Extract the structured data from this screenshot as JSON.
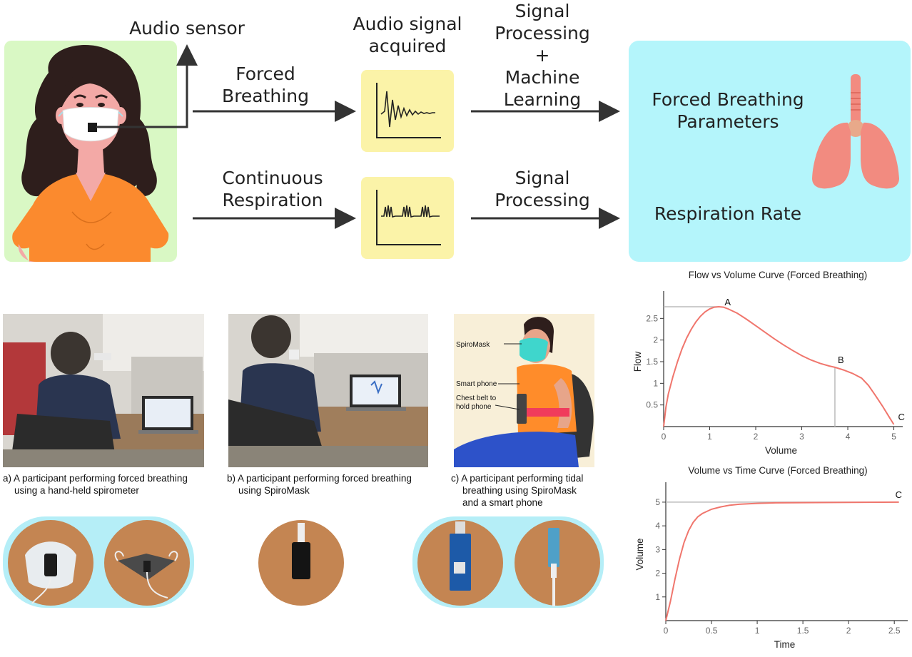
{
  "flow": {
    "audio_sensor": "Audio sensor",
    "audio_signal_acquired": [
      "Audio signal",
      "acquired"
    ],
    "forced_breathing": [
      "Forced",
      "Breathing"
    ],
    "continuous_respiration": [
      "Continuous",
      "Respiration"
    ],
    "sp_ml": [
      "Signal",
      "Processing",
      "+",
      "Machine",
      "Learning"
    ],
    "sp": [
      "Signal",
      "Processing"
    ],
    "forced_breathing_parameters": [
      "Forced Breathing",
      "Parameters"
    ],
    "respiration_rate": "Respiration Rate"
  },
  "photos": {
    "caption_a": [
      "a) A participant performing forced breathing",
      "using a hand-held spirometer"
    ],
    "caption_b": [
      "b) A participant performing forced breathing",
      "using SpiroMask"
    ],
    "caption_c": [
      "c) A participant performing tidal",
      "breathing using SpiroMask",
      "and a smart phone"
    ],
    "illus_labels": {
      "spiromask": "SpiroMask",
      "smart_phone": "Smart phone",
      "chest_belt": [
        "Chest belt to",
        "hold phone"
      ]
    }
  },
  "colors": {
    "person_panel": "#d9f8c4",
    "signal_box": "#fbf3a8",
    "result_panel": "#b4f5fb",
    "curve": "#f0766d",
    "lungs": "#f28b80"
  },
  "chart_data": [
    {
      "type": "line",
      "title": "Flow vs Volume Curve (Forced Breathing)",
      "xlabel": "Volume",
      "ylabel": "Flow",
      "xlim": [
        0,
        5.1
      ],
      "ylim": [
        0,
        3.0
      ],
      "xticks": [
        0,
        1,
        2,
        3,
        4,
        5
      ],
      "yticks": [
        0.5,
        1,
        1.5,
        2,
        2.5
      ],
      "annotations": [
        {
          "label": "A",
          "x": 1.2,
          "y": 2.77
        },
        {
          "label": "B",
          "x": 3.72,
          "y": 1.37
        },
        {
          "label": "C",
          "x": 5.0,
          "y": 0.05
        }
      ],
      "series": [
        {
          "x": [
            0,
            0.05,
            0.1,
            0.2,
            0.3,
            0.4,
            0.5,
            0.6,
            0.7,
            0.8,
            0.9,
            1.0,
            1.1,
            1.2,
            1.3,
            1.4,
            1.6,
            1.8,
            2.0,
            2.2,
            2.4,
            2.6,
            2.8,
            3.0,
            3.2,
            3.4,
            3.6,
            3.72,
            3.9,
            4.1,
            4.3,
            4.45,
            4.6,
            4.75,
            4.9,
            5.0
          ],
          "y": [
            0,
            0.45,
            0.75,
            1.15,
            1.5,
            1.8,
            2.05,
            2.25,
            2.42,
            2.55,
            2.65,
            2.72,
            2.76,
            2.77,
            2.76,
            2.72,
            2.62,
            2.48,
            2.33,
            2.18,
            2.03,
            1.89,
            1.76,
            1.64,
            1.54,
            1.46,
            1.4,
            1.37,
            1.31,
            1.23,
            1.12,
            0.95,
            0.72,
            0.48,
            0.22,
            0.05
          ]
        }
      ]
    },
    {
      "type": "line",
      "title": "Volume vs Time Curve (Forced Breathing)",
      "xlabel": "Time",
      "ylabel": "Volume",
      "xlim": [
        0,
        2.6
      ],
      "ylim": [
        0,
        5.6
      ],
      "xticks": [
        0,
        0.5,
        1,
        1.5,
        2,
        2.5
      ],
      "yticks": [
        1,
        2,
        3,
        4,
        5
      ],
      "annotations": [
        {
          "label": "C",
          "x": 2.55,
          "y": 5.0
        }
      ],
      "series": [
        {
          "x": [
            0,
            0.05,
            0.1,
            0.15,
            0.2,
            0.25,
            0.3,
            0.35,
            0.4,
            0.5,
            0.6,
            0.7,
            0.8,
            1.0,
            1.2,
            1.5,
            2.0,
            2.55
          ],
          "y": [
            0,
            0.8,
            1.75,
            2.6,
            3.3,
            3.8,
            4.15,
            4.38,
            4.52,
            4.7,
            4.8,
            4.87,
            4.91,
            4.95,
            4.97,
            4.98,
            4.99,
            5.0
          ]
        }
      ]
    }
  ]
}
